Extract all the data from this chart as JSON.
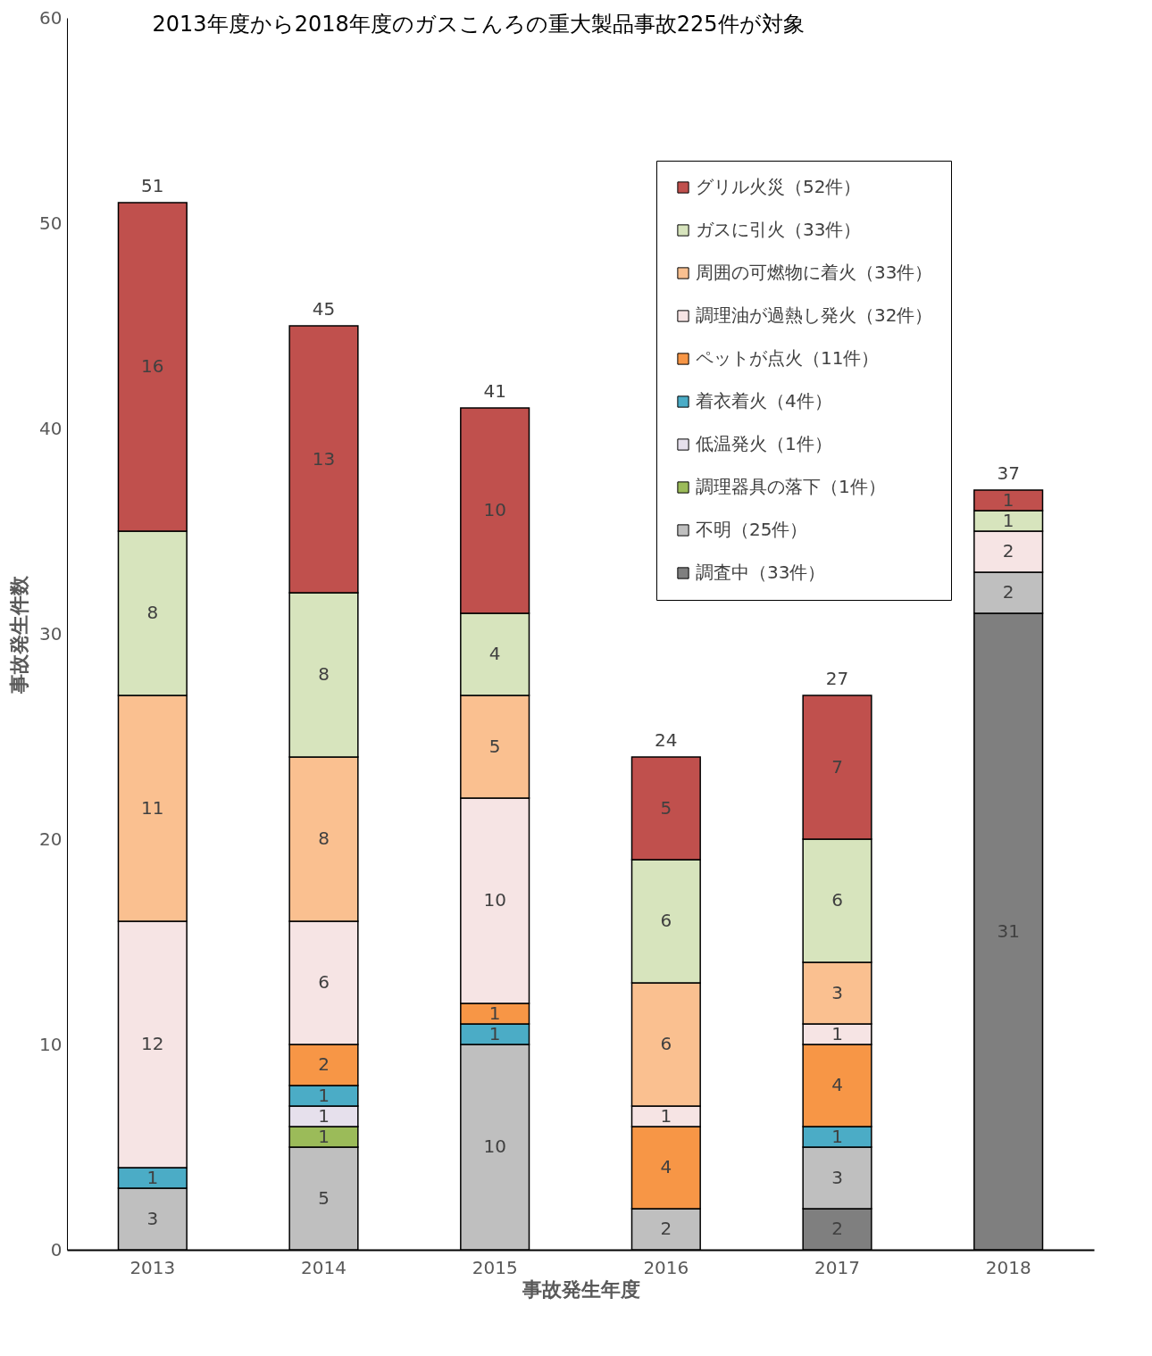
{
  "chart_data": {
    "type": "bar",
    "title": "2013年度から2018年度のガスこんろの重大製品事故225件が対象",
    "xlabel": "事故発生年度",
    "ylabel": "事故発生件数",
    "categories": [
      "2013",
      "2014",
      "2015",
      "2016",
      "2017",
      "2018"
    ],
    "stacked": true,
    "data_labels": true,
    "totals": [
      "51",
      "45",
      "41",
      "24",
      "27",
      "37"
    ],
    "ylim": [
      0,
      60
    ],
    "yticks": [
      0,
      10,
      20,
      30,
      40,
      50,
      60
    ],
    "grid": false,
    "legend": "top right",
    "series": [
      {
        "name": "調査中（33件）",
        "color": "#7f7f7f",
        "values": [
          null,
          null,
          null,
          null,
          2,
          31
        ]
      },
      {
        "name": "不明（25件）",
        "color": "#bfbfbf",
        "values": [
          3,
          5,
          10,
          2,
          3,
          2
        ]
      },
      {
        "name": "調理器具の落下（1件）",
        "color": "#9bbb59",
        "values": [
          null,
          1,
          null,
          null,
          null,
          null
        ]
      },
      {
        "name": "低温発火（1件）",
        "color": "#e6e0ec",
        "values": [
          null,
          1,
          null,
          null,
          null,
          null
        ]
      },
      {
        "name": "着衣着火（4件）",
        "color": "#4bacc6",
        "values": [
          1,
          1,
          1,
          null,
          1,
          null
        ]
      },
      {
        "name": "ペットが点火（11件）",
        "color": "#f79646",
        "values": [
          null,
          2,
          1,
          4,
          4,
          null
        ]
      },
      {
        "name": "調理油が過熱し発火（32件）",
        "color": "#f6e4e4",
        "values": [
          12,
          6,
          10,
          1,
          1,
          2
        ]
      },
      {
        "name": "周囲の可燃物に着火（33件）",
        "color": "#fac090",
        "values": [
          11,
          8,
          5,
          6,
          3,
          null
        ]
      },
      {
        "name": "ガスに引火（33件）",
        "color": "#d7e4bd",
        "values": [
          8,
          8,
          4,
          6,
          6,
          1
        ]
      },
      {
        "name": "グリル火災（52件）",
        "color": "#c0504d",
        "values": [
          16,
          13,
          10,
          5,
          7,
          1
        ]
      }
    ]
  }
}
